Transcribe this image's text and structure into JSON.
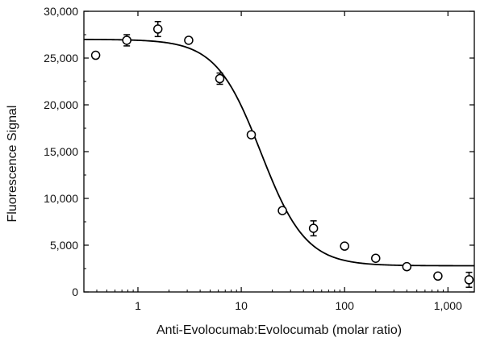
{
  "chart_data": {
    "type": "scatter",
    "title": "",
    "xlabel": "Anti-Evolocumab:Evolocumab (molar ratio)",
    "ylabel": "Fluorescence Signal",
    "xscale": "log",
    "xlim": [
      0.3,
      1800
    ],
    "ylim": [
      0,
      30000
    ],
    "grid": false,
    "legend": "none",
    "x_ticks": [
      1,
      10,
      100,
      1000
    ],
    "x_tick_labels": [
      "1",
      "10",
      "100",
      "1,000"
    ],
    "y_ticks": [
      0,
      5000,
      10000,
      15000,
      20000,
      25000,
      30000
    ],
    "y_tick_labels": [
      "0",
      "5,000",
      "10,000",
      "15,000",
      "20,000",
      "25,000",
      "30,000"
    ],
    "series": [
      {
        "type": "scatter",
        "marker": "open-circle",
        "x": [
          0.39,
          0.78,
          1.56,
          3.1,
          6.2,
          12.5,
          25,
          50,
          100,
          200,
          400,
          800,
          1600
        ],
        "y": [
          25300,
          26900,
          28100,
          26900,
          22800,
          16800,
          8700,
          6800,
          4900,
          3600,
          2700,
          1700,
          1300
        ],
        "error": [
          300,
          600,
          800,
          300,
          600,
          300,
          300,
          800,
          300,
          300,
          300,
          200,
          800
        ]
      },
      {
        "type": "line",
        "fit": "four-parameter logistic",
        "top": 27000,
        "bottom": 2800,
        "ec50": 15.5,
        "hill": 2.0
      }
    ],
    "colors": {
      "marker": "#000000",
      "line": "#000000",
      "axis": "#000000"
    }
  }
}
